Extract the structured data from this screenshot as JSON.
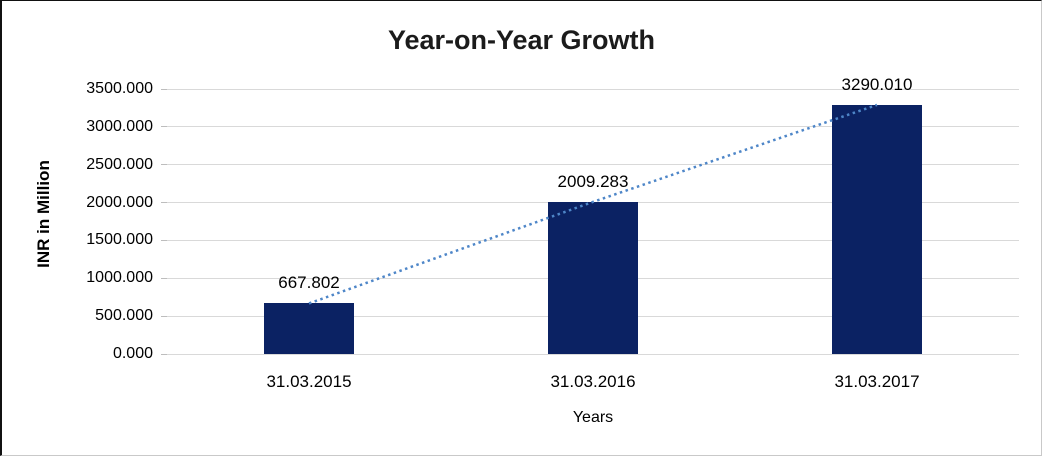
{
  "chart_data": {
    "type": "bar",
    "title": "Year-on-Year Growth",
    "categories": [
      "31.03.2015",
      "31.03.2016",
      "31.03.2017"
    ],
    "values": [
      667.802,
      2009.283,
      3290.01
    ],
    "data_labels": [
      "667.802",
      "2009.283",
      "3290.010"
    ],
    "xlabel": "Years",
    "ylabel": "INR in Million",
    "ylim": [
      0,
      3500
    ],
    "ytick_step": 500,
    "ytick_labels": [
      "0.000",
      "500.000",
      "1000.000",
      "1500.000",
      "2000.000",
      "2500.000",
      "3000.000",
      "3500.000"
    ],
    "grid": true,
    "legend": "none",
    "bar_color": "#0b2263",
    "trendline": {
      "type": "linear-dotted",
      "color": "#4e86c8",
      "connects": "bar-tops"
    }
  }
}
